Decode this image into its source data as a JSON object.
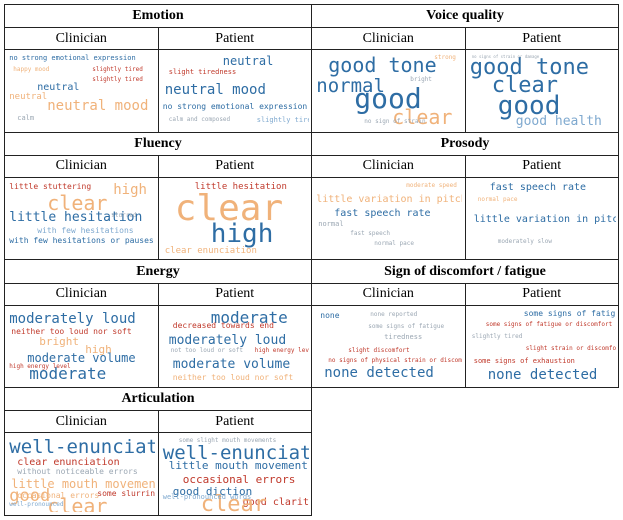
{
  "colors": {
    "blue": "#2e6da4",
    "peach": "#f0b27a",
    "red": "#c0392b",
    "lightblue": "#7fa9cf",
    "gray": "#9ba7b3"
  },
  "sections": [
    {
      "title": "Emotion",
      "sub": [
        "Clinician",
        "Patient"
      ],
      "clouds": [
        [
          "no strong emotional expression",
          "slightly tired",
          "happy mood",
          "neutral",
          "neutral mood",
          "slightly tired",
          "calm",
          "neutral"
        ],
        [
          "neutral",
          "slight tiredness",
          "neutral mood",
          "no strong emotional expression",
          "slightly tired",
          "calm and composed"
        ]
      ]
    },
    {
      "title": "Voice quality",
      "sub": [
        "Clinician",
        "Patient"
      ],
      "clouds": [
        [
          "good tone",
          "normal",
          "good",
          "clear",
          "strong",
          "bright",
          "no sign of strain"
        ],
        [
          "good tone",
          "clear",
          "good",
          "good health",
          "no signs of strain or damage"
        ]
      ]
    },
    {
      "title": "Fluency",
      "sub": [
        "Clinician",
        "Patient"
      ],
      "clouds": [
        [
          "little stuttering",
          "clear",
          "high",
          "little hesitation",
          "with few hesitations",
          "with few hesitations or pauses",
          "slurred"
        ],
        [
          "little hesitation",
          "clear",
          "high",
          "clear enunciation"
        ]
      ]
    },
    {
      "title": "Prosody",
      "sub": [
        "Clinician",
        "Patient"
      ],
      "clouds": [
        [
          "moderate speed",
          "little variation in pitch",
          "fast speech rate",
          "normal",
          "normal pace",
          "fast speech"
        ],
        [
          "fast speech rate",
          "normal pace",
          "little variation in pitch",
          "moderately slow"
        ]
      ]
    },
    {
      "title": "Energy",
      "sub": [
        "Clinician",
        "Patient"
      ],
      "clouds": [
        [
          "moderately loud",
          "neither too loud nor soft",
          "bright",
          "high",
          "moderate volume",
          "moderate",
          "high energy level"
        ],
        [
          "moderate",
          "decreased towards end",
          "moderately loud",
          "not too loud or soft",
          "high energy level",
          "moderate volume",
          "neither too loud nor soft"
        ]
      ]
    },
    {
      "title": "Sign of discomfort / fatigue",
      "sub": [
        "Clinician",
        "Patient"
      ],
      "clouds": [
        [
          "none",
          "none reported",
          "some signs of fatigue",
          "tiredness",
          "slight discomfort",
          "no signs of physical strain or discomfort",
          "none detected"
        ],
        [
          "some signs of fatigue",
          "some signs of fatigue or discomfort",
          "slightly tired",
          "slight strain or discomfort",
          "some signs of exhaustion",
          "none detected"
        ]
      ]
    },
    {
      "title": "Articulation",
      "sub": [
        "Clinician",
        "Patient"
      ],
      "clouds": [
        [
          "well-enunciated",
          "clear enunciation",
          "without noticeable errors",
          "little mouth movement",
          "good",
          "occasional errors",
          "some slurring",
          "clear",
          "well-pronounced"
        ],
        [
          "some slight mouth movements",
          "well-enunciated",
          "little mouth movement",
          "occasional errors",
          "good diction",
          "good clarity",
          "clear",
          "well-pronounced words"
        ]
      ]
    }
  ]
}
